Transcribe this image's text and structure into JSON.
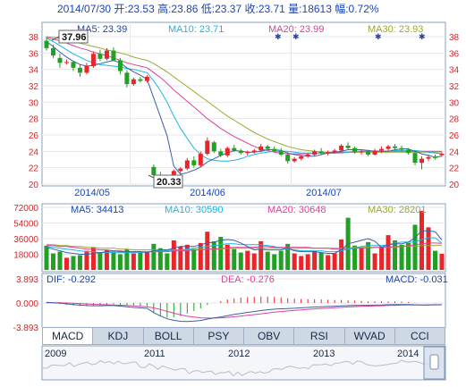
{
  "header": {
    "text": "2014/07/30 开:23.53 高:23.86 低:23.37 收:23.71 量:18613 幅:0.72%"
  },
  "colors": {
    "up": "#e8262a",
    "down": "#21a121",
    "ma5": "#3b5fa8",
    "ma10": "#1ab6e8",
    "ma20": "#e0409a",
    "ma30": "#9aa830",
    "text_blue": "#1a46b2",
    "text_red": "#d0282a"
  },
  "price_panel": {
    "ma5_label": "MA5: 23.39",
    "ma10_label": "MA10: 23.71",
    "ma20_label": "MA20: 23.99",
    "ma30_label": "MA30: 23.93",
    "high_marker": "37.96",
    "low_marker": "20.33"
  },
  "volume_panel": {
    "ma5_label": "MA5: 34413",
    "ma10_label": "MA10: 30590",
    "ma20_label": "MA20: 30648",
    "ma30_label": "MA30: 28201"
  },
  "macd_panel": {
    "dif_label": "DIF: -0.292",
    "dea_label": "DEA: -0.276",
    "macd_label": "MACD: -0.031"
  },
  "tabs": [
    "MACD",
    "KDJ",
    "BOLL",
    "PSY",
    "OBV",
    "RSI",
    "WVAD",
    "CCI"
  ],
  "active_tab": "MACD",
  "overview": {
    "years": [
      "2009",
      "2011",
      "2012",
      "2013",
      "2014"
    ]
  },
  "chart_data": [
    {
      "type": "candlestick",
      "ylim": [
        20,
        38
      ],
      "yticks": [
        20,
        22,
        24,
        26,
        28,
        30,
        32,
        34,
        36,
        38
      ],
      "xticks": [
        "2014/05",
        "2014/06",
        "2014/07"
      ],
      "candles": [
        {
          "o": 37.5,
          "h": 37.96,
          "l": 36.3,
          "c": 36.6
        },
        {
          "o": 36.6,
          "h": 37.0,
          "l": 35.4,
          "c": 35.7
        },
        {
          "o": 35.4,
          "h": 35.9,
          "l": 34.2,
          "c": 34.8
        },
        {
          "o": 34.8,
          "h": 35.2,
          "l": 34.6,
          "c": 34.9
        },
        {
          "o": 34.9,
          "h": 35.0,
          "l": 33.8,
          "c": 34.2
        },
        {
          "o": 34.2,
          "h": 34.6,
          "l": 33.1,
          "c": 33.6
        },
        {
          "o": 33.6,
          "h": 34.8,
          "l": 33.4,
          "c": 34.4
        },
        {
          "o": 34.4,
          "h": 36.2,
          "l": 34.2,
          "c": 35.9
        },
        {
          "o": 35.9,
          "h": 36.4,
          "l": 35.0,
          "c": 35.3
        },
        {
          "o": 35.3,
          "h": 36.6,
          "l": 35.1,
          "c": 36.3
        },
        {
          "o": 36.3,
          "h": 36.7,
          "l": 35.0,
          "c": 35.1
        },
        {
          "o": 35.1,
          "h": 35.4,
          "l": 33.4,
          "c": 33.8
        },
        {
          "o": 33.6,
          "h": 33.9,
          "l": 31.8,
          "c": 32.2
        },
        {
          "o": 32.2,
          "h": 33.0,
          "l": 32.0,
          "c": 32.8
        },
        {
          "o": 32.8,
          "h": 33.1,
          "l": 32.4,
          "c": 32.6
        },
        {
          "o": 32.6,
          "h": 33.3,
          "l": 32.4,
          "c": 33.1
        },
        {
          "o": 22.1,
          "h": 22.4,
          "l": 20.9,
          "c": 21.1
        },
        {
          "o": 21.1,
          "h": 21.5,
          "l": 20.6,
          "c": 20.8
        },
        {
          "o": 20.8,
          "h": 21.0,
          "l": 20.4,
          "c": 20.6
        },
        {
          "o": 20.6,
          "h": 21.8,
          "l": 20.33,
          "c": 21.6
        },
        {
          "o": 21.6,
          "h": 22.1,
          "l": 21.3,
          "c": 21.9
        },
        {
          "o": 21.9,
          "h": 23.2,
          "l": 21.7,
          "c": 22.9
        },
        {
          "o": 22.9,
          "h": 23.4,
          "l": 22.0,
          "c": 22.3
        },
        {
          "o": 22.3,
          "h": 24.0,
          "l": 22.1,
          "c": 23.7
        },
        {
          "o": 23.7,
          "h": 25.7,
          "l": 23.5,
          "c": 25.3
        },
        {
          "o": 25.1,
          "h": 25.3,
          "l": 23.8,
          "c": 24.0
        },
        {
          "o": 24.0,
          "h": 24.3,
          "l": 23.3,
          "c": 23.5
        },
        {
          "o": 23.5,
          "h": 24.6,
          "l": 23.3,
          "c": 24.4
        },
        {
          "o": 24.4,
          "h": 24.8,
          "l": 23.9,
          "c": 24.1
        },
        {
          "o": 24.1,
          "h": 24.3,
          "l": 23.6,
          "c": 23.8
        },
        {
          "o": 23.8,
          "h": 24.1,
          "l": 23.5,
          "c": 23.9
        },
        {
          "o": 23.9,
          "h": 24.3,
          "l": 23.7,
          "c": 24.1
        },
        {
          "o": 24.1,
          "h": 24.9,
          "l": 23.9,
          "c": 24.6
        },
        {
          "o": 24.6,
          "h": 24.8,
          "l": 24.1,
          "c": 24.3
        },
        {
          "o": 24.3,
          "h": 24.6,
          "l": 23.9,
          "c": 24.0
        },
        {
          "o": 24.0,
          "h": 24.4,
          "l": 23.4,
          "c": 23.6
        },
        {
          "o": 23.6,
          "h": 23.9,
          "l": 22.5,
          "c": 22.8
        },
        {
          "o": 22.8,
          "h": 23.3,
          "l": 22.6,
          "c": 23.1
        },
        {
          "o": 23.1,
          "h": 23.5,
          "l": 22.9,
          "c": 23.4
        },
        {
          "o": 23.4,
          "h": 23.8,
          "l": 23.2,
          "c": 23.6
        },
        {
          "o": 23.6,
          "h": 24.2,
          "l": 23.4,
          "c": 24.0
        },
        {
          "o": 24.0,
          "h": 24.4,
          "l": 23.6,
          "c": 23.8
        },
        {
          "o": 23.8,
          "h": 24.1,
          "l": 23.5,
          "c": 23.9
        },
        {
          "o": 23.9,
          "h": 24.3,
          "l": 23.7,
          "c": 24.1
        },
        {
          "o": 24.1,
          "h": 24.9,
          "l": 23.9,
          "c": 24.7
        },
        {
          "o": 24.7,
          "h": 25.1,
          "l": 24.2,
          "c": 24.4
        },
        {
          "o": 24.4,
          "h": 24.6,
          "l": 23.7,
          "c": 23.9
        },
        {
          "o": 23.9,
          "h": 24.2,
          "l": 23.6,
          "c": 24.0
        },
        {
          "o": 24.0,
          "h": 24.2,
          "l": 23.4,
          "c": 23.6
        },
        {
          "o": 23.6,
          "h": 24.3,
          "l": 23.5,
          "c": 24.1
        },
        {
          "o": 24.1,
          "h": 24.6,
          "l": 23.8,
          "c": 24.3
        },
        {
          "o": 24.3,
          "h": 24.8,
          "l": 24.0,
          "c": 24.6
        },
        {
          "o": 24.6,
          "h": 24.9,
          "l": 24.2,
          "c": 24.4
        },
        {
          "o": 24.4,
          "h": 24.7,
          "l": 24.0,
          "c": 24.2
        },
        {
          "o": 24.2,
          "h": 24.4,
          "l": 23.6,
          "c": 23.8
        },
        {
          "o": 23.8,
          "h": 24.1,
          "l": 22.3,
          "c": 22.6
        },
        {
          "o": 22.6,
          "h": 23.4,
          "l": 21.8,
          "c": 23.1
        },
        {
          "o": 23.1,
          "h": 23.6,
          "l": 22.8,
          "c": 23.3
        },
        {
          "o": 23.3,
          "h": 23.6,
          "l": 23.0,
          "c": 23.2
        },
        {
          "o": 23.53,
          "h": 23.86,
          "l": 23.37,
          "c": 23.71
        }
      ],
      "ma5": [
        37.4,
        36.8,
        36.1,
        35.5,
        35.0,
        34.6,
        34.4,
        34.5,
        34.7,
        34.9,
        35.1,
        34.8,
        34.2,
        33.7,
        33.3,
        32.8,
        30.5,
        28.2,
        25.9,
        22.2,
        21.2,
        21.4,
        21.7,
        22.1,
        22.7,
        23.1,
        23.5,
        23.8,
        24.1,
        24.0,
        23.9,
        23.9,
        24.0,
        24.2,
        24.2,
        24.1,
        23.8,
        23.6,
        23.5,
        23.4,
        23.4,
        23.6,
        23.8,
        23.9,
        24.0,
        24.2,
        24.2,
        24.2,
        24.1,
        24.0,
        24.0,
        24.0,
        24.2,
        24.3,
        24.3,
        24.0,
        23.7,
        23.5,
        23.3,
        23.39
      ],
      "ma10": [
        37.8,
        37.4,
        36.9,
        36.4,
        35.9,
        35.5,
        35.1,
        34.8,
        34.6,
        34.5,
        34.4,
        34.3,
        34.1,
        34.0,
        33.8,
        33.6,
        32.6,
        31.4,
        30.0,
        28.3,
        26.8,
        25.6,
        24.4,
        23.6,
        23.1,
        22.9,
        22.8,
        22.8,
        22.9,
        23.1,
        23.4,
        23.6,
        23.8,
        23.9,
        24.0,
        24.0,
        24.0,
        23.9,
        23.8,
        23.8,
        23.8,
        23.8,
        23.8,
        23.8,
        23.8,
        23.9,
        24.0,
        24.0,
        24.0,
        24.0,
        24.0,
        24.0,
        24.1,
        24.1,
        24.1,
        24.1,
        24.0,
        23.9,
        23.8,
        23.71
      ],
      "ma20": [
        37.9,
        37.7,
        37.5,
        37.2,
        36.9,
        36.6,
        36.4,
        36.1,
        35.9,
        35.7,
        35.4,
        35.1,
        34.8,
        34.6,
        34.4,
        34.2,
        33.6,
        33.0,
        32.3,
        31.5,
        30.8,
        30.1,
        29.4,
        28.7,
        28.0,
        27.4,
        26.8,
        26.3,
        25.8,
        25.4,
        25.0,
        24.6,
        24.3,
        24.1,
        23.9,
        23.8,
        23.7,
        23.7,
        23.7,
        23.7,
        23.8,
        23.8,
        23.8,
        23.8,
        23.9,
        23.9,
        23.9,
        24.0,
        24.0,
        24.0,
        24.0,
        24.0,
        24.0,
        24.0,
        24.0,
        24.0,
        24.0,
        24.0,
        24.0,
        23.99
      ],
      "ma30": [
        38.0,
        37.9,
        37.8,
        37.6,
        37.4,
        37.2,
        37.0,
        36.8,
        36.6,
        36.4,
        36.2,
        36.0,
        35.8,
        35.5,
        35.3,
        35.1,
        34.7,
        34.2,
        33.7,
        33.1,
        32.5,
        31.9,
        31.3,
        30.7,
        30.1,
        29.5,
        28.9,
        28.3,
        27.8,
        27.3,
        26.8,
        26.3,
        25.9,
        25.5,
        25.2,
        24.9,
        24.6,
        24.4,
        24.2,
        24.1,
        24.0,
        23.9,
        23.9,
        23.9,
        23.9,
        23.9,
        23.9,
        23.9,
        23.9,
        23.9,
        23.9,
        23.9,
        23.9,
        23.9,
        23.9,
        23.9,
        23.9,
        23.9,
        23.9,
        23.93
      ]
    },
    {
      "type": "bar",
      "ylim": [
        0,
        72000
      ],
      "yticks": [
        18000,
        36000,
        54000,
        72000
      ],
      "volume": [
        28000,
        19000,
        21000,
        14000,
        16000,
        17000,
        22000,
        26000,
        20000,
        23000,
        21000,
        18000,
        24000,
        19000,
        20000,
        21000,
        30000,
        25000,
        19000,
        34000,
        27000,
        29000,
        24000,
        31000,
        44000,
        33000,
        38000,
        29000,
        24000,
        20000,
        22000,
        19000,
        33000,
        21000,
        18000,
        22000,
        30000,
        19000,
        16000,
        18000,
        22000,
        20000,
        17000,
        19000,
        35000,
        60000,
        28000,
        26000,
        32000,
        19000,
        27000,
        40000,
        34000,
        29000,
        31000,
        52000,
        68000,
        49000,
        22000,
        18613
      ],
      "ma5": [
        26000,
        24000,
        22000,
        20000,
        19000,
        18000,
        18000,
        19000,
        20000,
        21000,
        22000,
        21000,
        21000,
        21000,
        21000,
        20000,
        22000,
        23000,
        23000,
        25000,
        27000,
        27000,
        27000,
        29000,
        31000,
        32000,
        34000,
        35000,
        34000,
        31000,
        27000,
        23000,
        24000,
        23000,
        23000,
        23000,
        25000,
        22000,
        21000,
        21000,
        21000,
        20000,
        19000,
        19000,
        23000,
        30000,
        32000,
        34000,
        36000,
        33000,
        26000,
        29000,
        30000,
        30000,
        32000,
        37000,
        45000,
        45000,
        44000,
        34413
      ],
      "ma10": [
        27000,
        26000,
        25000,
        24000,
        23000,
        22000,
        21000,
        21000,
        20000,
        20000,
        20000,
        20000,
        20000,
        20000,
        20000,
        21000,
        21000,
        22000,
        22000,
        23000,
        23000,
        24000,
        25000,
        26000,
        27000,
        28000,
        29000,
        30000,
        30000,
        29000,
        29000,
        29000,
        29000,
        28000,
        27000,
        25000,
        24000,
        23000,
        22000,
        22000,
        22000,
        22000,
        21000,
        21000,
        22000,
        24000,
        25000,
        27000,
        28000,
        28000,
        28000,
        29000,
        31000,
        32000,
        32000,
        32000,
        35000,
        37000,
        37000,
        30590
      ],
      "ma20": [
        28000,
        28000,
        27000,
        27000,
        26000,
        25000,
        24000,
        24000,
        23000,
        23000,
        22000,
        22000,
        21000,
        21000,
        21000,
        21000,
        21000,
        21000,
        21000,
        22000,
        22000,
        22000,
        23000,
        23000,
        24000,
        24000,
        25000,
        25000,
        26000,
        26000,
        26000,
        26000,
        27000,
        27000,
        26000,
        26000,
        26000,
        26000,
        26000,
        26000,
        25000,
        25000,
        25000,
        24000,
        24000,
        25000,
        25000,
        25000,
        25000,
        26000,
        26000,
        26000,
        27000,
        27000,
        28000,
        29000,
        30000,
        31000,
        31000,
        30648
      ],
      "ma30": [
        29000,
        29000,
        28000,
        28000,
        27000,
        27000,
        26000,
        26000,
        25000,
        25000,
        25000,
        24000,
        24000,
        23000,
        23000,
        23000,
        23000,
        23000,
        23000,
        23000,
        23000,
        23000,
        23000,
        24000,
        24000,
        24000,
        24000,
        25000,
        25000,
        25000,
        25000,
        25000,
        25000,
        25000,
        25000,
        25000,
        25000,
        25000,
        25000,
        25000,
        25000,
        25000,
        25000,
        25000,
        25000,
        25000,
        26000,
        26000,
        26000,
        26000,
        26000,
        26000,
        26000,
        27000,
        27000,
        27000,
        28000,
        28000,
        28000,
        28201
      ]
    },
    {
      "type": "line",
      "ylim": [
        -3.893,
        3.893
      ],
      "yticks": [
        -3.893,
        0.0,
        3.893
      ],
      "dif": [
        0.1,
        0.05,
        -0.05,
        -0.15,
        -0.25,
        -0.35,
        -0.42,
        -0.45,
        -0.44,
        -0.42,
        -0.42,
        -0.5,
        -0.62,
        -0.72,
        -0.8,
        -0.86,
        -1.55,
        -2.1,
        -2.55,
        -2.8,
        -2.95,
        -2.98,
        -2.93,
        -2.82,
        -2.6,
        -2.42,
        -2.25,
        -2.05,
        -1.85,
        -1.68,
        -1.52,
        -1.38,
        -1.22,
        -1.1,
        -1.0,
        -0.93,
        -0.9,
        -0.85,
        -0.78,
        -0.72,
        -0.65,
        -0.6,
        -0.56,
        -0.52,
        -0.46,
        -0.42,
        -0.4,
        -0.38,
        -0.37,
        -0.34,
        -0.31,
        -0.28,
        -0.25,
        -0.24,
        -0.25,
        -0.29,
        -0.31,
        -0.31,
        -0.3,
        -0.292
      ],
      "dea": [
        0.05,
        0.05,
        0.03,
        0.0,
        -0.04,
        -0.1,
        -0.16,
        -0.22,
        -0.26,
        -0.29,
        -0.32,
        -0.36,
        -0.41,
        -0.47,
        -0.54,
        -0.6,
        -0.79,
        -1.05,
        -1.35,
        -1.64,
        -1.9,
        -2.12,
        -2.28,
        -2.39,
        -2.43,
        -2.43,
        -2.39,
        -2.32,
        -2.22,
        -2.11,
        -1.99,
        -1.87,
        -1.74,
        -1.61,
        -1.49,
        -1.38,
        -1.28,
        -1.19,
        -1.11,
        -1.03,
        -0.95,
        -0.88,
        -0.82,
        -0.76,
        -0.7,
        -0.64,
        -0.59,
        -0.55,
        -0.51,
        -0.47,
        -0.44,
        -0.41,
        -0.38,
        -0.35,
        -0.33,
        -0.32,
        -0.31,
        -0.3,
        -0.28,
        -0.276
      ],
      "macd": [
        0.1,
        0.0,
        -0.16,
        -0.3,
        -0.42,
        -0.5,
        -0.52,
        -0.46,
        -0.36,
        -0.26,
        -0.2,
        -0.28,
        -0.42,
        -0.5,
        -0.52,
        -0.52,
        -1.52,
        -2.1,
        -2.4,
        -2.32,
        -2.1,
        -1.72,
        -1.3,
        -0.86,
        -0.34,
        0.02,
        0.28,
        0.54,
        0.74,
        0.86,
        0.94,
        0.98,
        1.04,
        1.02,
        0.98,
        0.9,
        0.76,
        0.68,
        0.66,
        0.62,
        0.6,
        0.56,
        0.52,
        0.48,
        0.48,
        0.44,
        0.38,
        0.34,
        0.28,
        0.26,
        0.26,
        0.26,
        0.26,
        0.22,
        0.16,
        0.06,
        0.0,
        -0.02,
        -0.04,
        -0.031
      ]
    }
  ]
}
